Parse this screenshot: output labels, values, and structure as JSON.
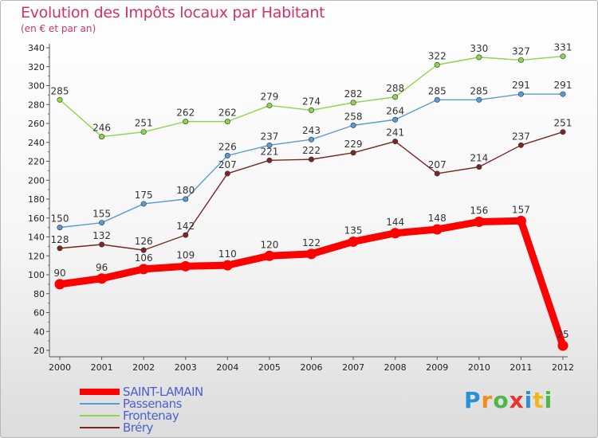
{
  "header": {
    "title": "Evolution des Impôts locaux par Habitant",
    "subtitle": "(en € et par an)"
  },
  "logo": {
    "text": "Proxiti",
    "letters": [
      {
        "ch": "P",
        "color": "#2a8fd6"
      },
      {
        "ch": "r",
        "color": "#f28c1b"
      },
      {
        "ch": "o",
        "color": "#4cb848"
      },
      {
        "ch": "x",
        "color": "#e8332a"
      },
      {
        "ch": "i",
        "color": "#2a8fd6"
      },
      {
        "ch": "t",
        "color": "#f2b81b"
      },
      {
        "ch": "i",
        "color": "#4cb848"
      }
    ]
  },
  "chart_data": {
    "type": "line",
    "title": "Evolution des Impôts locaux par Habitant",
    "subtitle": "(en € et par an)",
    "x": [
      2000,
      2001,
      2002,
      2003,
      2004,
      2005,
      2006,
      2007,
      2008,
      2009,
      2010,
      2011,
      2012
    ],
    "ylim": [
      20,
      340
    ],
    "yticks": [
      20,
      40,
      60,
      80,
      100,
      120,
      140,
      160,
      180,
      200,
      220,
      240,
      260,
      280,
      300,
      320,
      340
    ],
    "grid": false,
    "legend_position": "bottom-left",
    "series": [
      {
        "name": "SAINT-LAMAIN",
        "color": "#ff0000",
        "bold": true,
        "values": [
          90,
          96,
          106,
          109,
          110,
          120,
          122,
          135,
          144,
          148,
          156,
          157,
          25
        ]
      },
      {
        "name": "Passenans",
        "color": "#5b9bd5",
        "values": [
          150,
          155,
          175,
          180,
          226,
          237,
          243,
          258,
          264,
          285,
          285,
          291,
          291
        ]
      },
      {
        "name": "Frontenay",
        "color": "#8ed54e",
        "values": [
          285,
          246,
          251,
          262,
          262,
          279,
          274,
          282,
          288,
          322,
          330,
          327,
          331
        ]
      },
      {
        "name": "Bréry",
        "color": "#7a2626",
        "values": [
          128,
          132,
          126,
          142,
          207,
          221,
          222,
          229,
          241,
          207,
          214,
          237,
          251
        ]
      }
    ]
  }
}
